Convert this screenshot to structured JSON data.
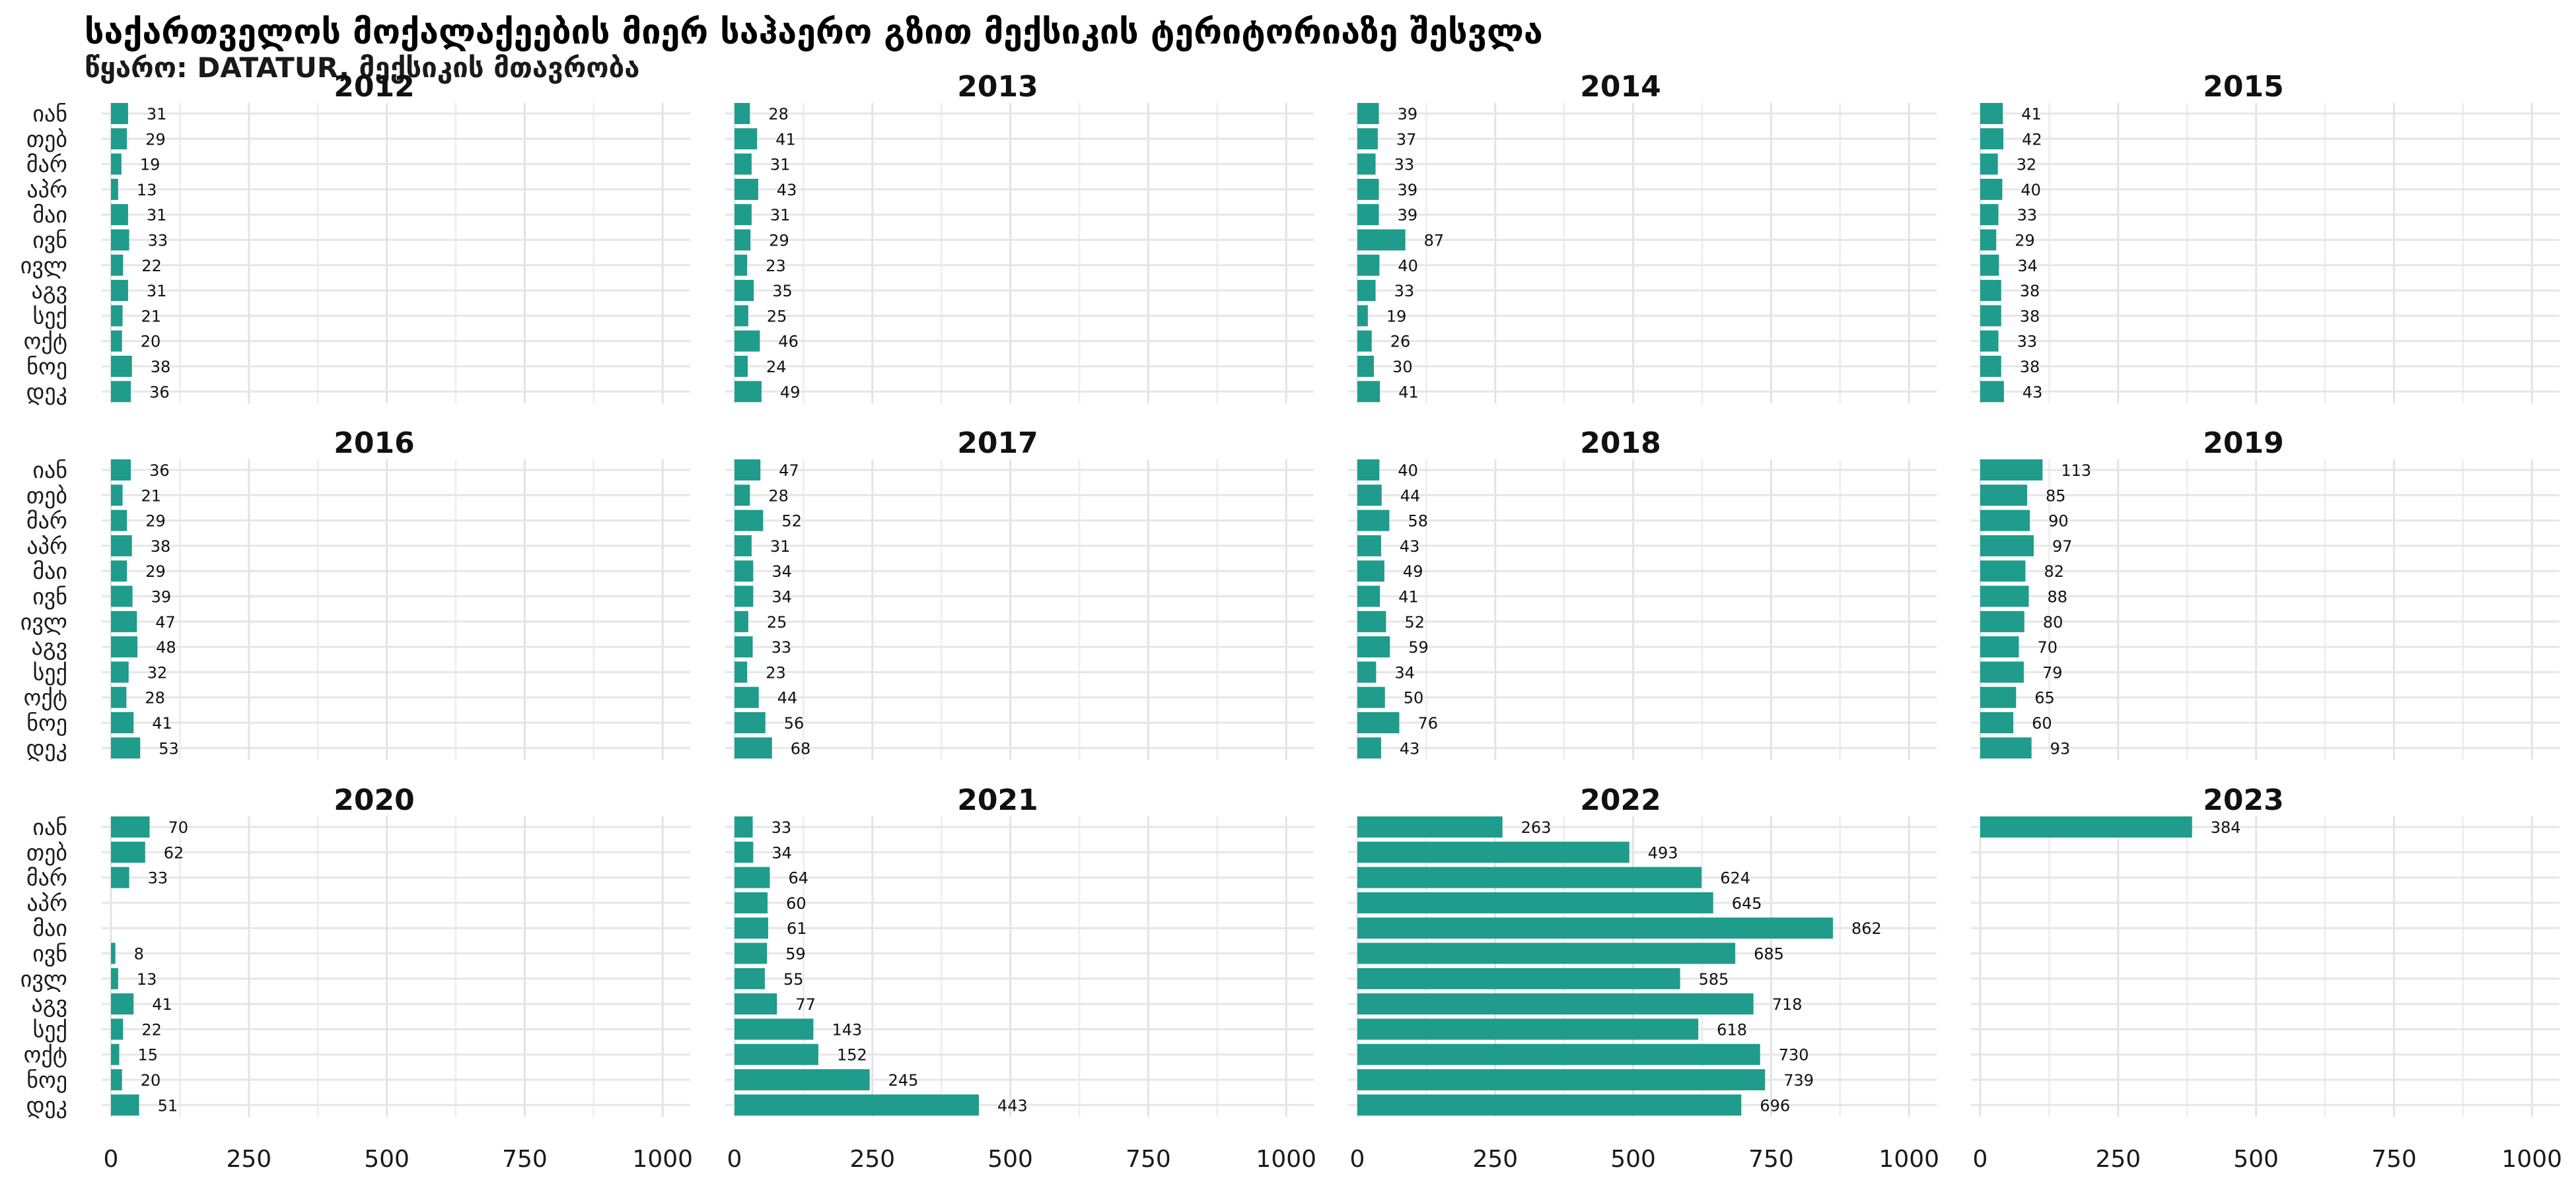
{
  "chart_data": {
    "type": "bar",
    "orientation": "horizontal",
    "facet": "year",
    "title": "საქართველოს მოქალაქეების მიერ საჰაერო გზით მექსიკის ტერიტორიაზე შესვლა",
    "subtitle": "წყარო: DATATUR, მექსიკის მთავრობა",
    "categories": [
      "იან",
      "თებ",
      "მარ",
      "აპრ",
      "მაი",
      "ივნ",
      "ივლ",
      "აგვ",
      "სექ",
      "ოქტ",
      "ნოე",
      "დეკ"
    ],
    "xlim": [
      0,
      1050
    ],
    "xticks": [
      0,
      250,
      500,
      750,
      1000
    ],
    "grid": true,
    "bar_color": "#1F9C8B",
    "panels": [
      {
        "year": "2012",
        "values": [
          31,
          29,
          19,
          13,
          31,
          33,
          22,
          31,
          21,
          20,
          38,
          36
        ]
      },
      {
        "year": "2013",
        "values": [
          28,
          41,
          31,
          43,
          31,
          29,
          23,
          35,
          25,
          46,
          24,
          49
        ]
      },
      {
        "year": "2014",
        "values": [
          39,
          37,
          33,
          39,
          39,
          87,
          40,
          33,
          19,
          26,
          30,
          41
        ]
      },
      {
        "year": "2015",
        "values": [
          41,
          42,
          32,
          40,
          33,
          29,
          34,
          38,
          38,
          33,
          38,
          43
        ]
      },
      {
        "year": "2016",
        "values": [
          36,
          21,
          29,
          38,
          29,
          39,
          47,
          48,
          32,
          28,
          41,
          53
        ]
      },
      {
        "year": "2017",
        "values": [
          47,
          28,
          52,
          31,
          34,
          34,
          25,
          33,
          23,
          44,
          56,
          68
        ]
      },
      {
        "year": "2018",
        "values": [
          40,
          44,
          58,
          43,
          49,
          41,
          52,
          59,
          34,
          50,
          76,
          43
        ]
      },
      {
        "year": "2019",
        "values": [
          113,
          85,
          90,
          97,
          82,
          88,
          80,
          70,
          79,
          65,
          60,
          93
        ]
      },
      {
        "year": "2020",
        "values": [
          70,
          62,
          33,
          null,
          null,
          8,
          13,
          41,
          22,
          15,
          20,
          51
        ]
      },
      {
        "year": "2021",
        "values": [
          33,
          34,
          64,
          60,
          61,
          59,
          55,
          77,
          143,
          152,
          245,
          443
        ]
      },
      {
        "year": "2022",
        "values": [
          263,
          493,
          624,
          645,
          862,
          685,
          585,
          718,
          618,
          730,
          739,
          696
        ]
      },
      {
        "year": "2023",
        "values": [
          384,
          null,
          null,
          null,
          null,
          null,
          null,
          null,
          null,
          null,
          null,
          null
        ]
      }
    ]
  }
}
